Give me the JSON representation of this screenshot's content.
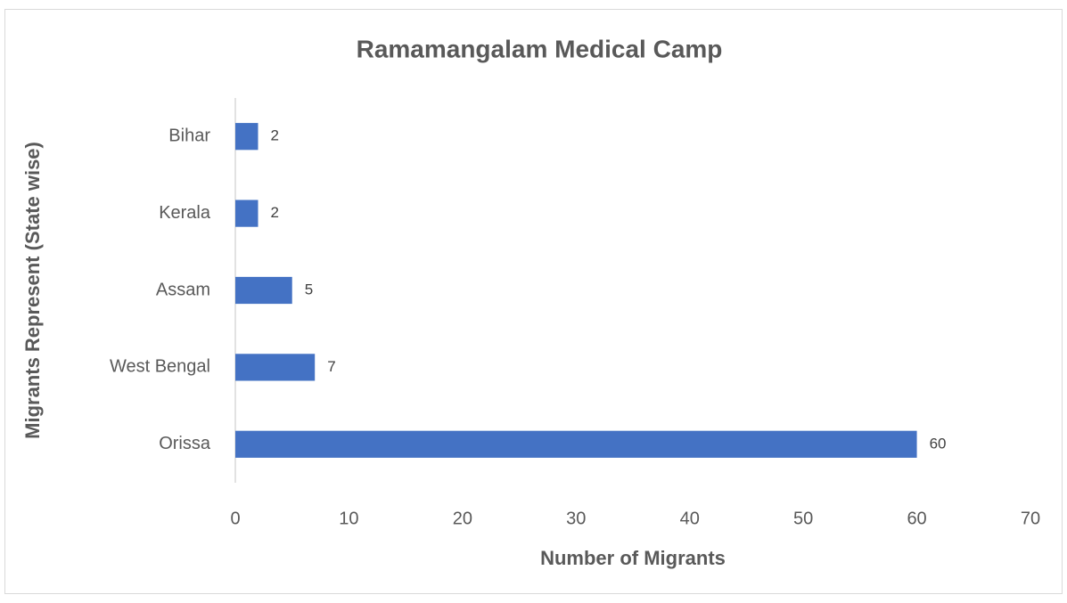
{
  "chart_data": {
    "type": "bar",
    "orientation": "horizontal",
    "title": "Ramamangalam Medical Camp",
    "x_label": "Number of Migrants",
    "y_label": "Migrants Represent (State wise)",
    "categories": [
      "Orissa",
      "West Bengal",
      "Assam",
      "Kerala",
      "Bihar"
    ],
    "values": [
      60,
      7,
      5,
      2,
      2
    ],
    "color": "#4472c4",
    "xlim": [
      0,
      70
    ],
    "xticks": [
      0,
      10,
      20,
      30,
      40,
      50,
      60,
      70
    ],
    "grid": false
  }
}
